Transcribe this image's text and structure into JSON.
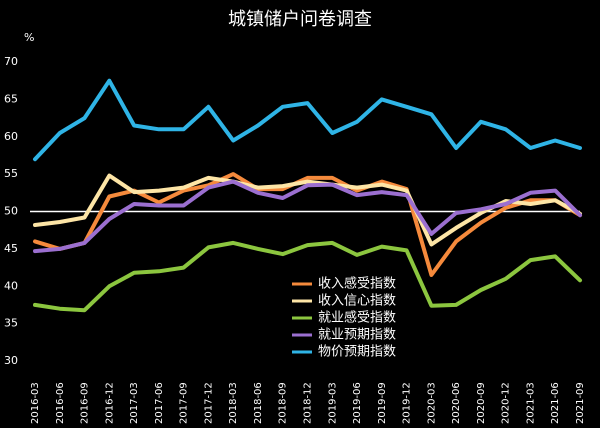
{
  "chart_data": {
    "type": "line",
    "title": "城镇储户问卷调查",
    "y_unit": "%",
    "categories": [
      "2016-03",
      "2016-06",
      "2016-09",
      "2016-12",
      "2017-03",
      "2017-06",
      "2017-09",
      "2017-12",
      "2018-03",
      "2018-06",
      "2018-09",
      "2018-12",
      "2019-03",
      "2019-06",
      "2019-09",
      "2019-12",
      "2020-03",
      "2020-06",
      "2020-09",
      "2020-12",
      "2021-03",
      "2021-06",
      "2021-09"
    ],
    "series": [
      {
        "name": "收入感受指数",
        "color": "#f58a3c",
        "values": [
          46,
          45,
          45.8,
          52,
          52.8,
          51.2,
          52.8,
          53.5,
          55,
          53,
          53,
          54.5,
          54.5,
          52.8,
          54,
          53,
          41.5,
          46,
          48.5,
          50.5,
          51.5,
          51.5,
          49.5
        ]
      },
      {
        "name": "收入信心指数",
        "color": "#fde5a6",
        "values": [
          48.2,
          48.6,
          49.2,
          54.8,
          52.6,
          52.8,
          53.2,
          54.5,
          54,
          53.2,
          53.4,
          54,
          53.6,
          53.2,
          53.6,
          52.8,
          45.6,
          47.8,
          49.8,
          51.4,
          51,
          51.5,
          49.7
        ]
      },
      {
        "name": "就业感受指数",
        "color": "#8cc63f",
        "values": [
          37.5,
          37,
          36.8,
          40,
          41.8,
          42,
          42.5,
          45.2,
          45.8,
          45,
          44.3,
          45.5,
          45.8,
          44.2,
          45.3,
          44.8,
          37.4,
          37.5,
          39.5,
          41,
          43.5,
          44,
          40.8
        ]
      },
      {
        "name": "就业预期指数",
        "color": "#9b6fd0",
        "values": [
          44.7,
          45,
          45.8,
          49,
          51,
          50.8,
          50.8,
          53.2,
          54,
          52.5,
          51.8,
          53.5,
          53.6,
          52.2,
          52.6,
          52.2,
          47,
          49.8,
          50.3,
          51,
          52.5,
          52.8,
          49.5
        ]
      },
      {
        "name": "物价预期指数",
        "color": "#2fb4e6",
        "values": [
          57,
          60.5,
          62.5,
          67.5,
          61.5,
          61,
          61,
          64,
          59.5,
          61.5,
          64,
          64.5,
          60.5,
          62,
          65,
          64,
          63,
          58.5,
          62,
          61,
          58.5,
          59.5,
          58.5
        ]
      }
    ],
    "ylim": [
      30,
      70
    ],
    "yticks": [
      30,
      35,
      40,
      45,
      50,
      55,
      60,
      65,
      70
    ],
    "reference_line": 50,
    "grid": false
  }
}
